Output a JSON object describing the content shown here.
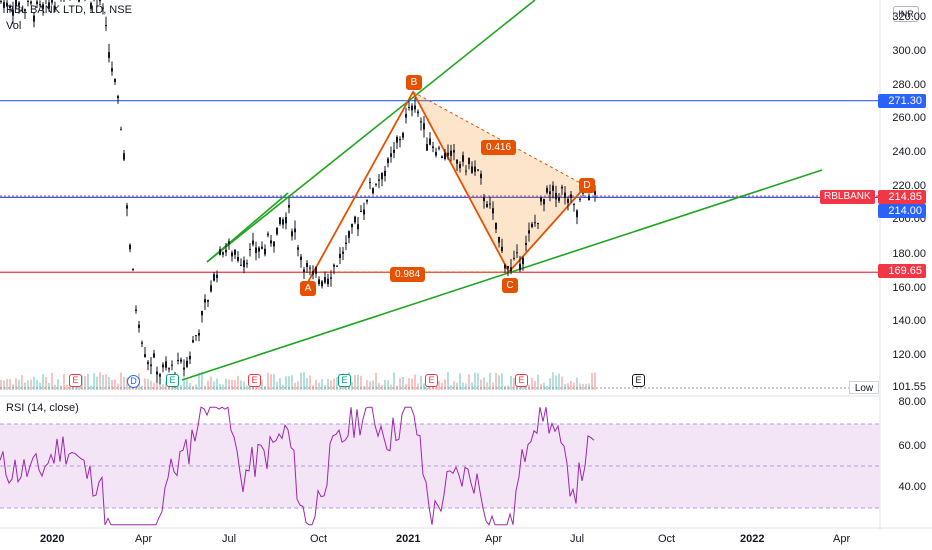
{
  "header": {
    "title": "RBL BANK LTD, 1D, NSE",
    "vol_label": "Vol",
    "currency": "INR"
  },
  "rsi": {
    "title": "RSI (14, close)"
  },
  "price_axis": {
    "ticks": [
      "320.00",
      "300.00",
      "280.00",
      "260.00",
      "240.00",
      "220.00",
      "200.00",
      "180.00",
      "160.00",
      "140.00",
      "120.00"
    ]
  },
  "rsi_axis": {
    "ticks": [
      "80.00",
      "60.00",
      "40.00"
    ]
  },
  "time_axis": {
    "ticks": [
      {
        "label": "2020",
        "bold": true
      },
      {
        "label": "Apr",
        "bold": false
      },
      {
        "label": "Jul",
        "bold": false
      },
      {
        "label": "Oct",
        "bold": false
      },
      {
        "label": "2021",
        "bold": true
      },
      {
        "label": "Apr",
        "bold": false
      },
      {
        "label": "Jul",
        "bold": false
      },
      {
        "label": "Oct",
        "bold": false
      },
      {
        "label": "2022",
        "bold": true
      },
      {
        "label": "Apr",
        "bold": false
      }
    ]
  },
  "price_labels": {
    "resistance": "271.30",
    "last": "214.85",
    "close_line": "214.00",
    "support": "169.65",
    "low_prefix": "Low",
    "low": "101.55",
    "symbol": "RBLBANK"
  },
  "pattern": {
    "points": [
      "A",
      "B",
      "C",
      "D"
    ],
    "ratio_bc": "0.416",
    "ratio_ac": "0.984"
  },
  "events": [
    "E",
    "D",
    "E",
    "E",
    "E",
    "E",
    "E",
    "E"
  ],
  "colors": {
    "up": "#26a69a",
    "down": "#ef5350",
    "candle": "#131722",
    "trendline": "#1fa51f",
    "resistance": "#2962ff",
    "support": "#f23645",
    "pattern": "#e65100",
    "rsi_line": "#9c27b0",
    "rsi_band": "#f3e5f5"
  }
}
